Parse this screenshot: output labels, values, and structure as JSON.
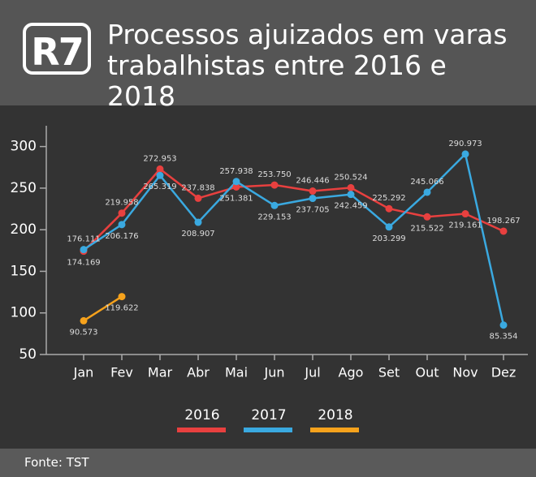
{
  "logo": "R7",
  "source": "Fonte: TST",
  "chart_data": {
    "type": "line",
    "title": "Processos ajuizados em varas trabalhistas entre 2016 e 2018",
    "categories": [
      "Jan",
      "Fev",
      "Mar",
      "Abr",
      "Mai",
      "Jun",
      "Jul",
      "Ago",
      "Set",
      "Out",
      "Nov",
      "Dez"
    ],
    "series": [
      {
        "name": "2016",
        "color": "#e8403f",
        "values": [
          174.169,
          219.958,
          272.953,
          237.838,
          251.381,
          253.75,
          246.446,
          250.524,
          225.292,
          215.522,
          219.161,
          198.267
        ],
        "value_labels": [
          "174.169",
          "219.958",
          "272.953",
          "237.838",
          "251.381",
          "253.750",
          "246.446",
          "250.524",
          "225.292",
          "215.522",
          "219.161",
          "198.267"
        ]
      },
      {
        "name": "2017",
        "color": "#3aa9e0",
        "values": [
          176.111,
          206.176,
          265.319,
          208.907,
          257.938,
          229.153,
          237.705,
          242.459,
          203.299,
          245.066,
          290.973,
          85.354
        ],
        "value_labels": [
          "176.111",
          "206.176",
          "265.319",
          "208.907",
          "257.938",
          "229.153",
          "237.705",
          "242.459",
          "203.299",
          "245.066",
          "290.973",
          "85.354"
        ]
      },
      {
        "name": "2018",
        "color": "#f6a21c",
        "values": [
          90.573,
          119.622,
          null,
          null,
          null,
          null,
          null,
          null,
          null,
          null,
          null,
          null
        ],
        "value_labels": [
          "90.573",
          "119.622",
          null,
          null,
          null,
          null,
          null,
          null,
          null,
          null,
          null,
          null
        ]
      }
    ],
    "ylim": [
      50,
      325
    ],
    "yticks": [
      50,
      100,
      150,
      200,
      250,
      300
    ],
    "grid": false,
    "legend": "bottom"
  }
}
